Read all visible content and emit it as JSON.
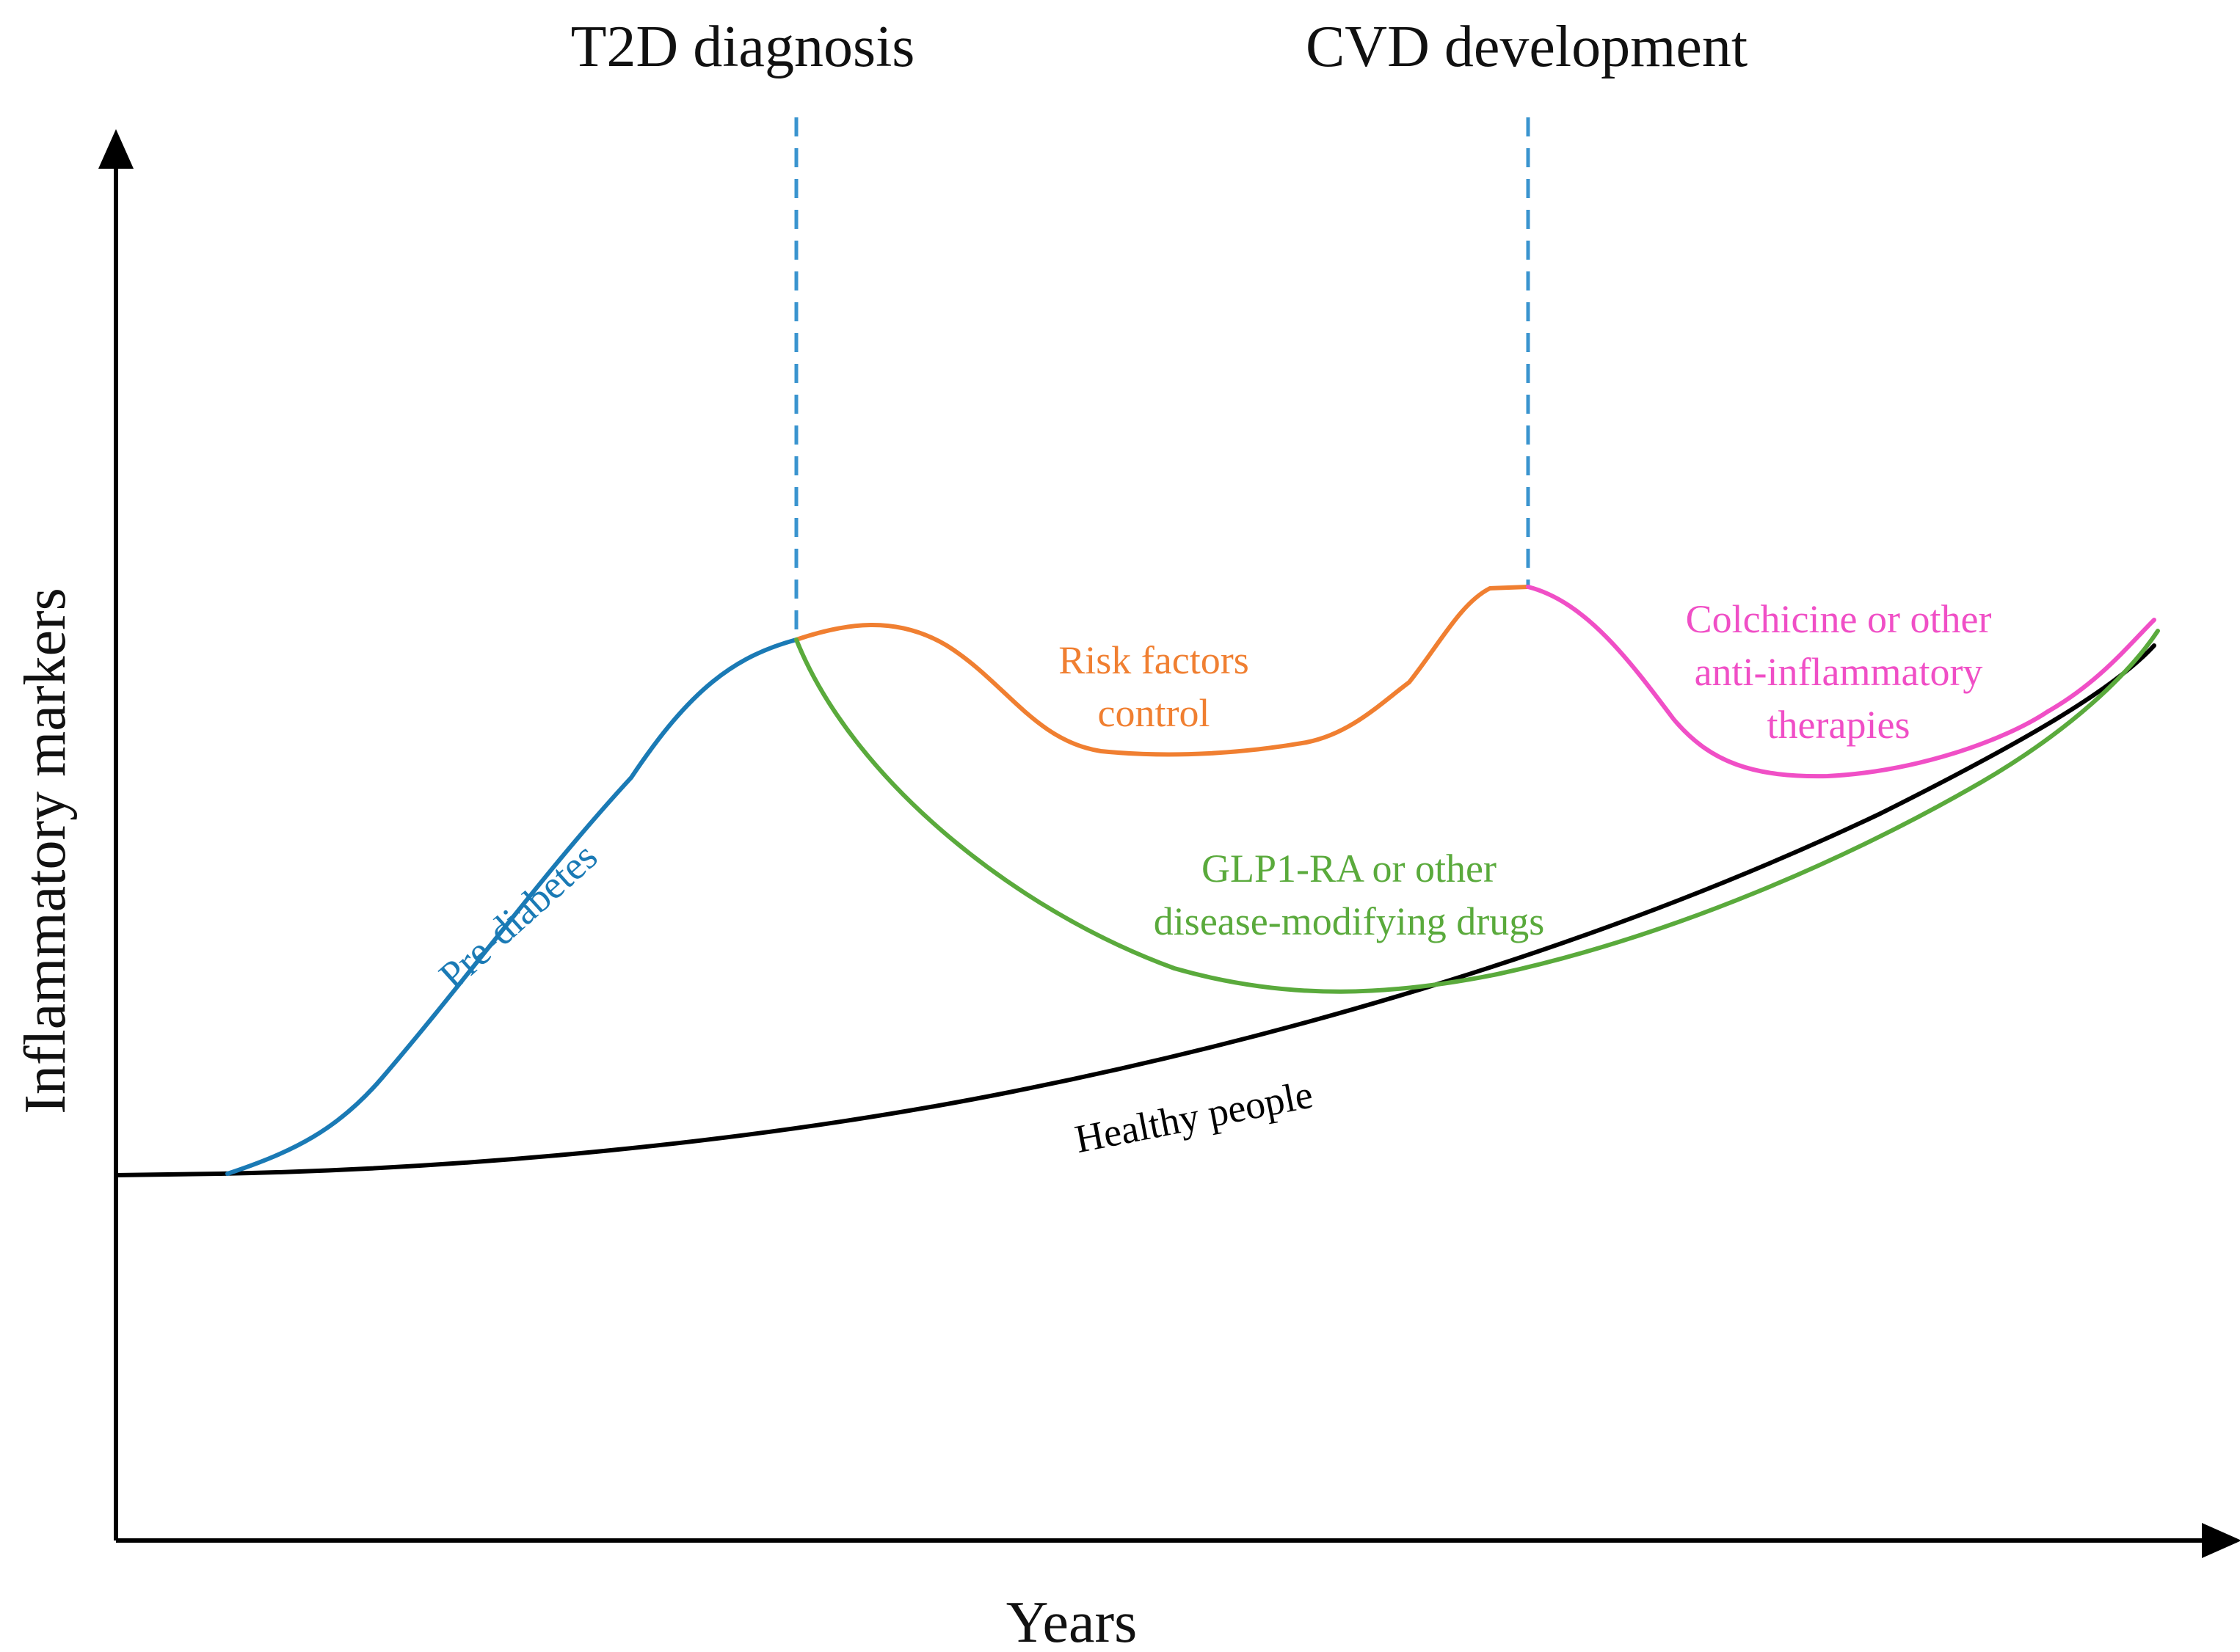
{
  "title_events": {
    "t2d": "T2D diagnosis",
    "cvd": "CVD development"
  },
  "axes": {
    "x_label": "Years",
    "y_label": "Inflammatory markers"
  },
  "curves": {
    "healthy": {
      "label": "Healthy people",
      "color": "#000000"
    },
    "prediabetes": {
      "label": "Pre-diabetes",
      "color": "#1a7ab5"
    },
    "risk_factors": {
      "label_line1": "Risk factors",
      "label_line2": "control",
      "color": "#f07f31"
    },
    "glp1": {
      "label_line1": "GLP1-RA or other",
      "label_line2": "disease-modifying drugs",
      "color": "#5aaa3c"
    },
    "colchicine": {
      "label_line1": "Colchicine or other",
      "label_line2": "anti-inflammatory",
      "label_line3": "therapies",
      "color": "#f04fc6"
    }
  },
  "event_line_color": "#3a94cf"
}
